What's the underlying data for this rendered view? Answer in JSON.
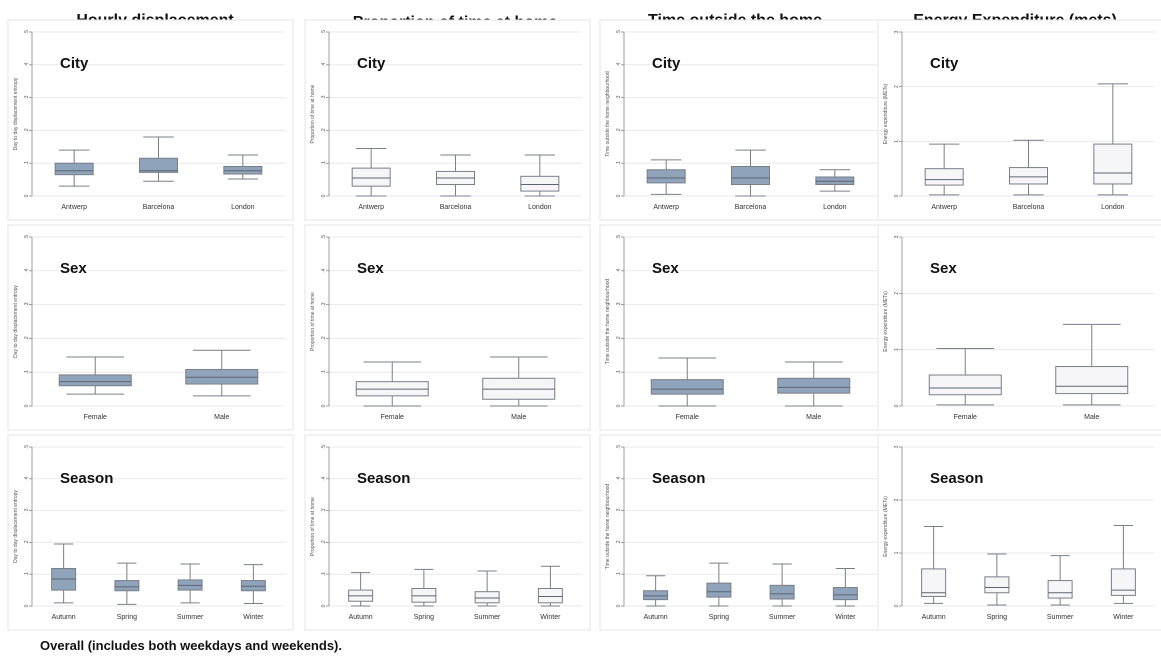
{
  "column_titles": [
    "Hourly displacement",
    "Proportion of time at home",
    "Time outside the home neighbourhood",
    "Energy Expenditure (mets)"
  ],
  "caption": "Overall (includes both weekdays and weekends).",
  "colors": {
    "filled": "#8fa3ba",
    "hollow": "#f6f6f9",
    "line": "#7a7f88"
  },
  "chart_data": [
    {
      "type": "box",
      "row": 0,
      "col": 0,
      "panel_label": "City",
      "ylabel": "Day to day displacement entropy",
      "yticks": [
        0,
        1,
        2,
        3,
        4,
        5
      ],
      "ytick_labels": [
        "0",
        ".1",
        ".2",
        ".3",
        ".4",
        ".5"
      ],
      "ylim": [
        0,
        5
      ],
      "style": "filled",
      "categories": [
        "Antwerp",
        "Barcelona",
        "London"
      ],
      "boxes": [
        {
          "whislo": 0.3,
          "q1": 0.65,
          "med": 0.77,
          "q3": 1.0,
          "whishi": 1.4
        },
        {
          "whislo": 0.45,
          "q1": 0.72,
          "med": 0.77,
          "q3": 1.15,
          "whishi": 1.8
        },
        {
          "whislo": 0.52,
          "q1": 0.67,
          "med": 0.77,
          "q3": 0.9,
          "whishi": 1.25
        }
      ]
    },
    {
      "type": "box",
      "row": 0,
      "col": 1,
      "panel_label": "City",
      "ylabel": "Proportion of time at home",
      "yticks": [
        0,
        1,
        2,
        3,
        4,
        5
      ],
      "ytick_labels": [
        "0",
        ".1",
        ".2",
        ".3",
        ".4",
        ".5"
      ],
      "ylim": [
        0,
        5
      ],
      "style": "hollow",
      "categories": [
        "Antwerp",
        "Barcelona",
        "London"
      ],
      "boxes": [
        {
          "whislo": 0.0,
          "q1": 0.3,
          "med": 0.55,
          "q3": 0.85,
          "whishi": 1.45
        },
        {
          "whislo": 0.0,
          "q1": 0.35,
          "med": 0.55,
          "q3": 0.75,
          "whishi": 1.25
        },
        {
          "whislo": 0.0,
          "q1": 0.15,
          "med": 0.35,
          "q3": 0.6,
          "whishi": 1.25
        }
      ]
    },
    {
      "type": "box",
      "row": 0,
      "col": 2,
      "panel_label": "City",
      "ylabel": "Time outside the home neighbourhood",
      "yticks": [
        0,
        1,
        2,
        3,
        4,
        5
      ],
      "ytick_labels": [
        "0",
        ".1",
        ".2",
        ".3",
        ".4",
        ".5"
      ],
      "ylim": [
        0,
        5
      ],
      "style": "filled",
      "categories": [
        "Antwerp",
        "Barcelona",
        "London"
      ],
      "boxes": [
        {
          "whislo": 0.05,
          "q1": 0.4,
          "med": 0.55,
          "q3": 0.8,
          "whishi": 1.1
        },
        {
          "whislo": 0.0,
          "q1": 0.35,
          "med": 0.55,
          "q3": 0.9,
          "whishi": 1.4
        },
        {
          "whislo": 0.15,
          "q1": 0.35,
          "med": 0.45,
          "q3": 0.58,
          "whishi": 0.8
        }
      ]
    },
    {
      "type": "box",
      "row": 0,
      "col": 3,
      "panel_label": "City",
      "ylabel": "Energy expenditure (METs)",
      "yticks": [
        0,
        1,
        2,
        3
      ],
      "ytick_labels": [
        "0",
        "1",
        "2",
        "3"
      ],
      "ylim": [
        0,
        3
      ],
      "style": "hollow",
      "categories": [
        "Antwerp",
        "Barcelona",
        "London"
      ],
      "boxes": [
        {
          "whislo": 0.02,
          "q1": 0.2,
          "med": 0.3,
          "q3": 0.5,
          "whishi": 0.95
        },
        {
          "whislo": 0.02,
          "q1": 0.22,
          "med": 0.35,
          "q3": 0.52,
          "whishi": 1.02
        },
        {
          "whislo": 0.02,
          "q1": 0.22,
          "med": 0.42,
          "q3": 0.95,
          "whishi": 2.05
        }
      ]
    },
    {
      "type": "box",
      "row": 1,
      "col": 0,
      "panel_label": "Sex",
      "ylabel": "Day to day displacement entropy",
      "yticks": [
        0,
        1,
        2,
        3,
        4,
        5
      ],
      "ytick_labels": [
        "0",
        ".1",
        ".2",
        ".3",
        ".4",
        ".5"
      ],
      "ylim": [
        0,
        5
      ],
      "style": "filled",
      "categories": [
        "Female",
        "Male"
      ],
      "boxes": [
        {
          "whislo": 0.35,
          "q1": 0.6,
          "med": 0.72,
          "q3": 0.92,
          "whishi": 1.45
        },
        {
          "whislo": 0.3,
          "q1": 0.65,
          "med": 0.85,
          "q3": 1.08,
          "whishi": 1.65
        }
      ]
    },
    {
      "type": "box",
      "row": 1,
      "col": 1,
      "panel_label": "Sex",
      "ylabel": "Proportion of time at home",
      "yticks": [
        0,
        1,
        2,
        3,
        4,
        5
      ],
      "ytick_labels": [
        "0",
        ".1",
        ".2",
        ".3",
        ".4",
        ".5"
      ],
      "ylim": [
        0,
        5
      ],
      "style": "hollow",
      "categories": [
        "Female",
        "Male"
      ],
      "boxes": [
        {
          "whislo": 0.0,
          "q1": 0.3,
          "med": 0.5,
          "q3": 0.72,
          "whishi": 1.3
        },
        {
          "whislo": 0.0,
          "q1": 0.2,
          "med": 0.5,
          "q3": 0.82,
          "whishi": 1.45
        }
      ]
    },
    {
      "type": "box",
      "row": 1,
      "col": 2,
      "panel_label": "Sex",
      "ylabel": "Time outside the home neighbourhood",
      "yticks": [
        0,
        1,
        2,
        3,
        4,
        5
      ],
      "ytick_labels": [
        "0",
        ".1",
        ".2",
        ".3",
        ".4",
        ".5"
      ],
      "ylim": [
        0,
        5
      ],
      "style": "filled",
      "categories": [
        "Female",
        "Male"
      ],
      "boxes": [
        {
          "whislo": 0.0,
          "q1": 0.35,
          "med": 0.5,
          "q3": 0.78,
          "whishi": 1.42
        },
        {
          "whislo": 0.0,
          "q1": 0.38,
          "med": 0.55,
          "q3": 0.82,
          "whishi": 1.3
        }
      ]
    },
    {
      "type": "box",
      "row": 1,
      "col": 3,
      "panel_label": "Sex",
      "ylabel": "Energy expenditure (METs)",
      "yticks": [
        0,
        1,
        2,
        3
      ],
      "ytick_labels": [
        "0",
        "1",
        "2",
        "3"
      ],
      "ylim": [
        0,
        3
      ],
      "style": "hollow",
      "categories": [
        "Female",
        "Male"
      ],
      "boxes": [
        {
          "whislo": 0.02,
          "q1": 0.2,
          "med": 0.32,
          "q3": 0.55,
          "whishi": 1.02
        },
        {
          "whislo": 0.02,
          "q1": 0.22,
          "med": 0.35,
          "q3": 0.7,
          "whishi": 1.45
        }
      ]
    },
    {
      "type": "box",
      "row": 2,
      "col": 0,
      "panel_label": "Season",
      "ylabel": "Day to day displacement entropy",
      "yticks": [
        0,
        1,
        2,
        3,
        4,
        5
      ],
      "ytick_labels": [
        "0",
        ".1",
        ".2",
        ".3",
        ".4",
        ".5"
      ],
      "ylim": [
        0,
        5
      ],
      "style": "filled",
      "categories": [
        "Autumn",
        "Spring",
        "Summer",
        "Winter"
      ],
      "boxes": [
        {
          "whislo": 0.1,
          "q1": 0.5,
          "med": 0.85,
          "q3": 1.18,
          "whishi": 1.95
        },
        {
          "whislo": 0.05,
          "q1": 0.48,
          "med": 0.6,
          "q3": 0.8,
          "whishi": 1.35
        },
        {
          "whislo": 0.1,
          "q1": 0.5,
          "med": 0.65,
          "q3": 0.82,
          "whishi": 1.32
        },
        {
          "whislo": 0.08,
          "q1": 0.48,
          "med": 0.62,
          "q3": 0.8,
          "whishi": 1.3
        }
      ]
    },
    {
      "type": "box",
      "row": 2,
      "col": 1,
      "panel_label": "Season",
      "ylabel": "Proportion of time at home",
      "yticks": [
        0,
        1,
        2,
        3,
        4,
        5
      ],
      "ytick_labels": [
        "0",
        ".1",
        ".2",
        ".3",
        ".4",
        ".5"
      ],
      "ylim": [
        0,
        5
      ],
      "style": "hollow",
      "categories": [
        "Autumn",
        "Spring",
        "Summer",
        "Winter"
      ],
      "boxes": [
        {
          "whislo": 0.0,
          "q1": 0.15,
          "med": 0.32,
          "q3": 0.5,
          "whishi": 1.05
        },
        {
          "whislo": 0.0,
          "q1": 0.12,
          "med": 0.32,
          "q3": 0.55,
          "whishi": 1.15
        },
        {
          "whislo": 0.0,
          "q1": 0.1,
          "med": 0.25,
          "q3": 0.45,
          "whishi": 1.1
        },
        {
          "whislo": 0.0,
          "q1": 0.1,
          "med": 0.3,
          "q3": 0.55,
          "whishi": 1.25
        }
      ]
    },
    {
      "type": "box",
      "row": 2,
      "col": 2,
      "panel_label": "Season",
      "ylabel": "Time outside the home neighbourhood",
      "yticks": [
        0,
        1,
        2,
        3,
        4,
        5
      ],
      "ytick_labels": [
        "0",
        ".1",
        ".2",
        ".3",
        ".4",
        ".5"
      ],
      "ylim": [
        0,
        5
      ],
      "style": "filled",
      "categories": [
        "Autumn",
        "Spring",
        "Summer",
        "Winter"
      ],
      "boxes": [
        {
          "whislo": 0.0,
          "q1": 0.2,
          "med": 0.32,
          "q3": 0.48,
          "whishi": 0.95
        },
        {
          "whislo": 0.0,
          "q1": 0.28,
          "med": 0.45,
          "q3": 0.72,
          "whishi": 1.35
        },
        {
          "whislo": 0.0,
          "q1": 0.22,
          "med": 0.38,
          "q3": 0.65,
          "whishi": 1.32
        },
        {
          "whislo": 0.0,
          "q1": 0.2,
          "med": 0.35,
          "q3": 0.58,
          "whishi": 1.18
        }
      ]
    },
    {
      "type": "box",
      "row": 2,
      "col": 3,
      "panel_label": "Season",
      "ylabel": "Energy expenditure (METs)",
      "yticks": [
        0,
        1,
        2,
        3
      ],
      "ytick_labels": [
        "0",
        "1",
        "2",
        "3"
      ],
      "ylim": [
        0,
        3
      ],
      "style": "hollow",
      "categories": [
        "Autumn",
        "Spring",
        "Summer",
        "Winter"
      ],
      "boxes": [
        {
          "whislo": 0.05,
          "q1": 0.18,
          "med": 0.25,
          "q3": 0.7,
          "whishi": 1.5
        },
        {
          "whislo": 0.02,
          "q1": 0.25,
          "med": 0.35,
          "q3": 0.55,
          "whishi": 0.98
        },
        {
          "whislo": 0.02,
          "q1": 0.15,
          "med": 0.25,
          "q3": 0.48,
          "whishi": 0.95
        },
        {
          "whislo": 0.05,
          "q1": 0.2,
          "med": 0.3,
          "q3": 0.7,
          "whishi": 1.52
        }
      ]
    }
  ]
}
